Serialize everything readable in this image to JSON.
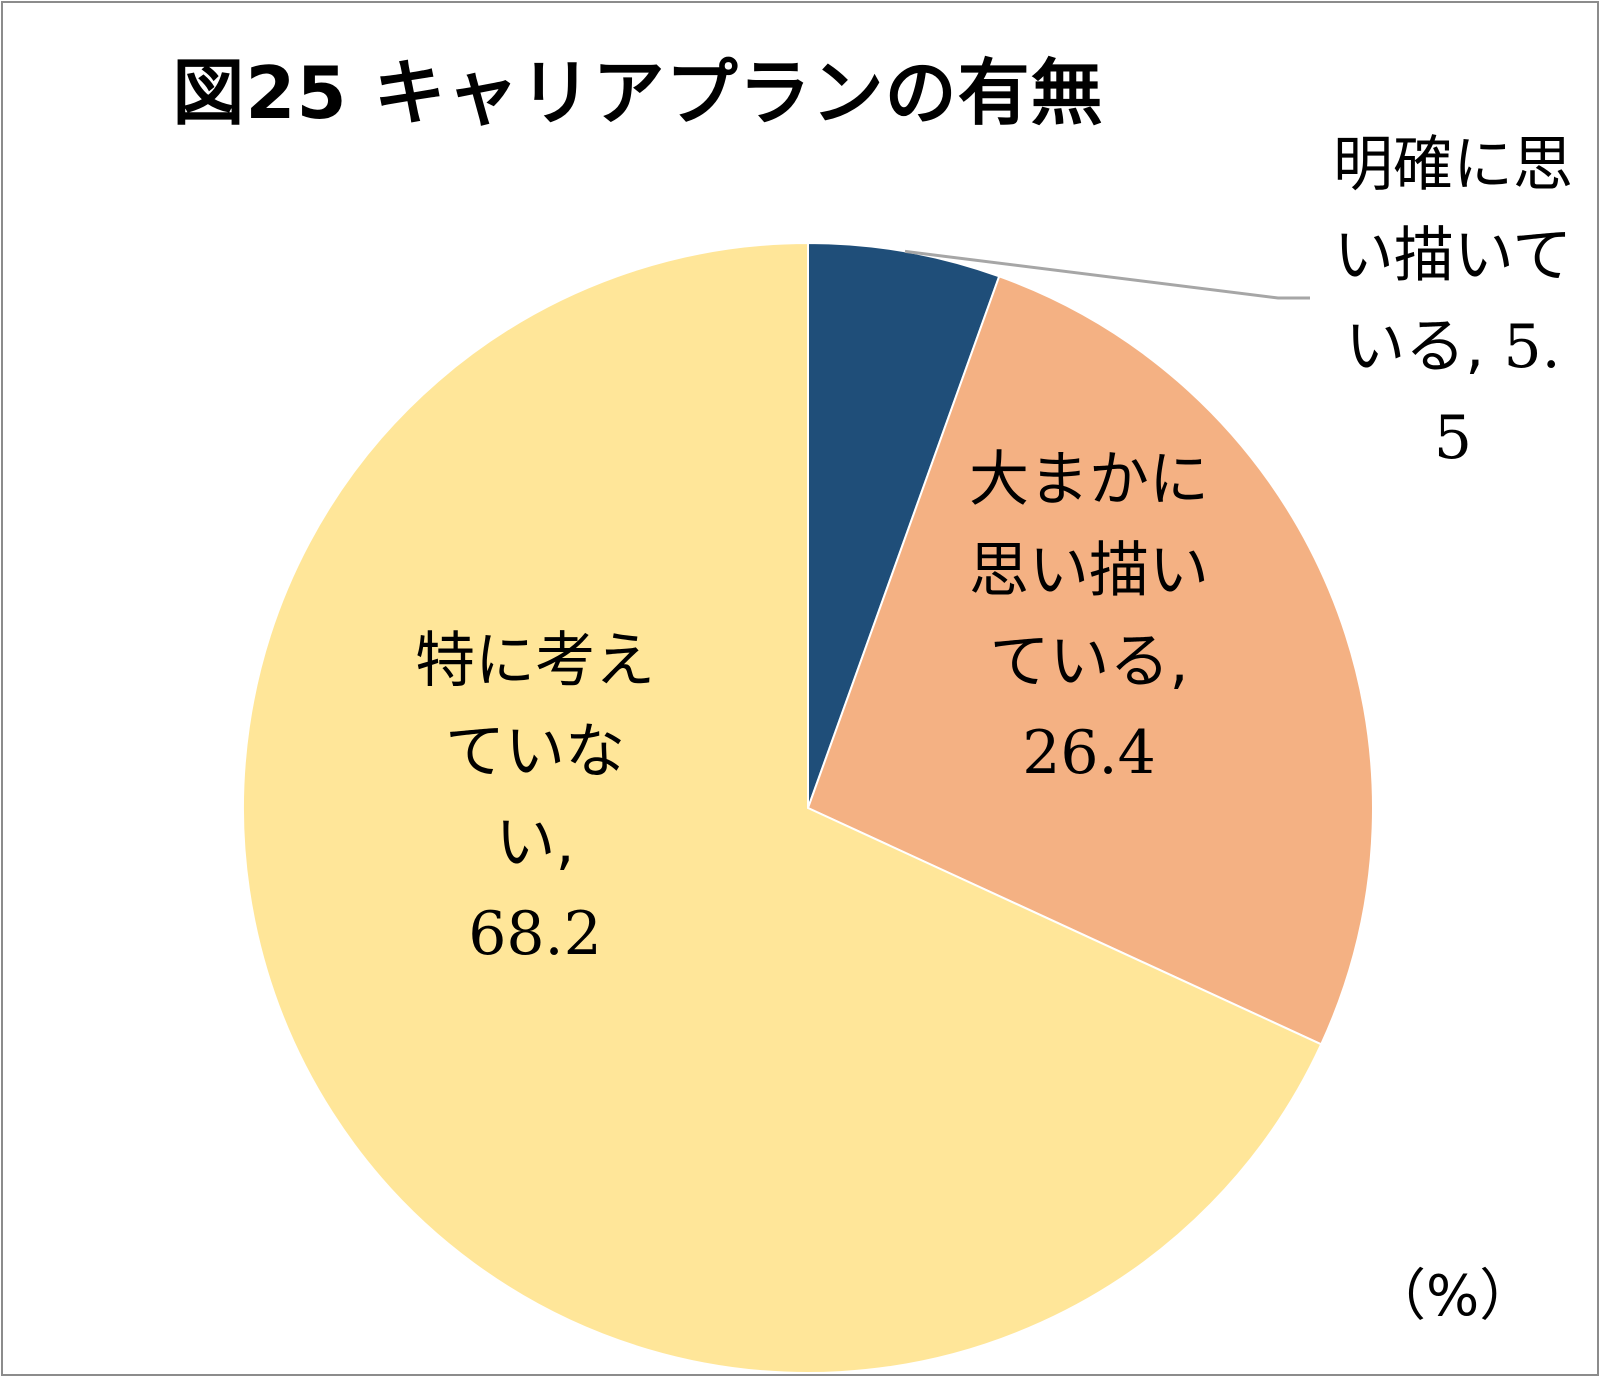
{
  "chart_data": {
    "type": "pie",
    "title": "図25 キャリアプランの有無",
    "unit": "（%）",
    "start_angle_deg": 0,
    "direction": "clockwise",
    "slices": [
      {
        "label": "明確に思い描いている",
        "value": 5.5,
        "value_text": "5.5",
        "color": "#1f4e79"
      },
      {
        "label": "大まかに思い描いている",
        "value": 26.4,
        "value_text": "26.4",
        "color": "#f4b183"
      },
      {
        "label": "特に考えていない",
        "value": 68.2,
        "value_text": "68.2",
        "color": "#ffe699"
      }
    ]
  }
}
